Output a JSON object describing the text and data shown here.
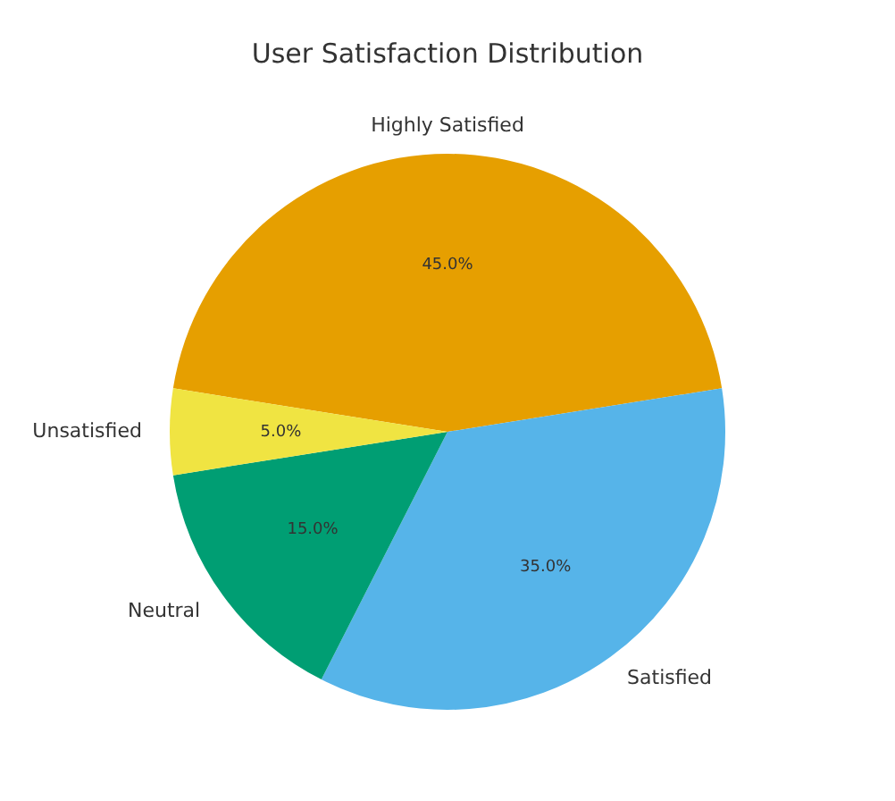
{
  "chart_data": {
    "type": "pie",
    "title": "User Satisfaction Distribution",
    "categories": [
      "Highly Satisfied",
      "Satisfied",
      "Neutral",
      "Unsatisfied"
    ],
    "values": [
      45,
      35,
      15,
      5
    ],
    "colors": [
      "#e69f00",
      "#56b4e9",
      "#009e73",
      "#f0e442"
    ],
    "value_labels": [
      "45.0%",
      "35.0%",
      "15.0%",
      "5.0%"
    ],
    "legend": false
  }
}
